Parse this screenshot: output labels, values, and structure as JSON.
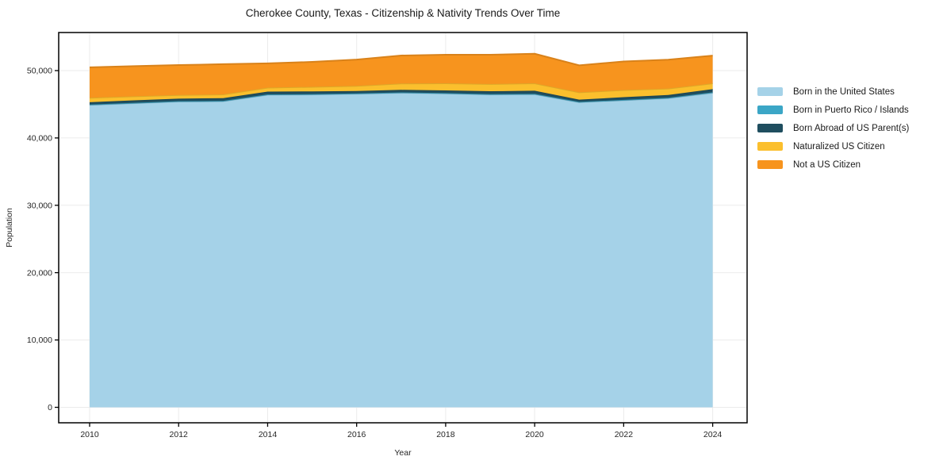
{
  "figure": {
    "title": "Cherokee County, Texas - Citizenship & Nativity Trends Over Time",
    "xlabel": "Year",
    "ylabel": "Population"
  },
  "chart_data": {
    "type": "area",
    "stacked": true,
    "title": "Cherokee County, Texas - Citizenship & Nativity Trends Over Time",
    "xlabel": "Year",
    "ylabel": "Population",
    "grid": true,
    "legend_position": "right-outside",
    "x": [
      2010,
      2011,
      2012,
      2013,
      2014,
      2015,
      2016,
      2017,
      2018,
      2019,
      2020,
      2021,
      2022,
      2023,
      2024
    ],
    "x_ticks": [
      2010,
      2012,
      2014,
      2016,
      2018,
      2020,
      2022,
      2024
    ],
    "y_ticks": [
      0,
      10000,
      20000,
      30000,
      40000,
      50000
    ],
    "ylim": [
      0,
      55650
    ],
    "series": [
      {
        "name": "Born in the United States",
        "color": "#A5D2E8",
        "values": [
          44900,
          45150,
          45400,
          45450,
          46400,
          46450,
          46550,
          46700,
          46600,
          46450,
          46500,
          45300,
          45600,
          45900,
          46700
        ]
      },
      {
        "name": "Born in Puerto Rico / Islands",
        "color": "#3BA6C6",
        "values": [
          60,
          60,
          60,
          60,
          60,
          60,
          60,
          60,
          60,
          60,
          60,
          60,
          60,
          60,
          80
        ]
      },
      {
        "name": "Born Abroad of US Parent(s)",
        "color": "#1F4E5F",
        "values": [
          350,
          370,
          380,
          400,
          420,
          400,
          350,
          380,
          400,
          420,
          450,
          320,
          390,
          420,
          470
        ]
      },
      {
        "name": "Naturalized US Citizen",
        "color": "#FBBF2D",
        "values": [
          660,
          600,
          540,
          560,
          590,
          680,
          780,
          950,
          1060,
          1080,
          1100,
          1090,
          1060,
          950,
          860
        ]
      },
      {
        "name": "Not a US Citizen",
        "color": "#F7941E",
        "values": [
          4520,
          4480,
          4440,
          4480,
          3600,
          3700,
          3890,
          4150,
          4240,
          4350,
          4390,
          4010,
          4240,
          4290,
          4120
        ]
      }
    ]
  },
  "colors": {
    "frame": "#000000",
    "grid": "#ebebeb",
    "tick": "#000000",
    "tick_label": "#262626",
    "title": "#1a1a1a",
    "background": "#ffffff"
  }
}
